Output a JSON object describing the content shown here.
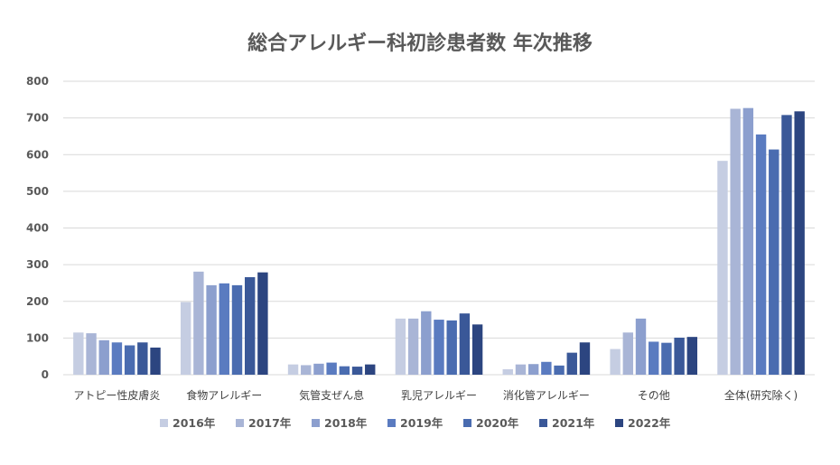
{
  "chart_data": {
    "type": "bar",
    "title": "総合アレルギー科初診患者数 年次推移",
    "xlabel": "",
    "ylabel": "",
    "ylim": [
      0,
      800
    ],
    "yticks": [
      0,
      100,
      200,
      300,
      400,
      500,
      600,
      700,
      800
    ],
    "grid": true,
    "legend_position": "bottom",
    "categories": [
      "アトピー性皮膚炎",
      "食物アレルギー",
      "気管支ぜん息",
      "乳児アレルギー",
      "消化管アレルギー",
      "その他",
      "全体(研究除く)"
    ],
    "series": [
      {
        "name": "2016年",
        "color": "#c5cde2",
        "values": [
          115,
          198,
          28,
          153,
          15,
          70,
          583
        ]
      },
      {
        "name": "2017年",
        "color": "#a9b5d6",
        "values": [
          113,
          281,
          26,
          153,
          28,
          115,
          725
        ]
      },
      {
        "name": "2018年",
        "color": "#8c9fce",
        "values": [
          94,
          244,
          30,
          173,
          29,
          153,
          727
        ]
      },
      {
        "name": "2019年",
        "color": "#5a7bc0",
        "values": [
          88,
          249,
          33,
          150,
          35,
          90,
          655
        ]
      },
      {
        "name": "2020年",
        "color": "#4a6cb0",
        "values": [
          80,
          244,
          23,
          148,
          25,
          87,
          614
        ]
      },
      {
        "name": "2021年",
        "color": "#3a5898",
        "values": [
          88,
          266,
          22,
          167,
          60,
          101,
          708
        ]
      },
      {
        "name": "2022年",
        "color": "#2c4580",
        "values": [
          74,
          279,
          28,
          137,
          88,
          103,
          718
        ]
      }
    ]
  }
}
